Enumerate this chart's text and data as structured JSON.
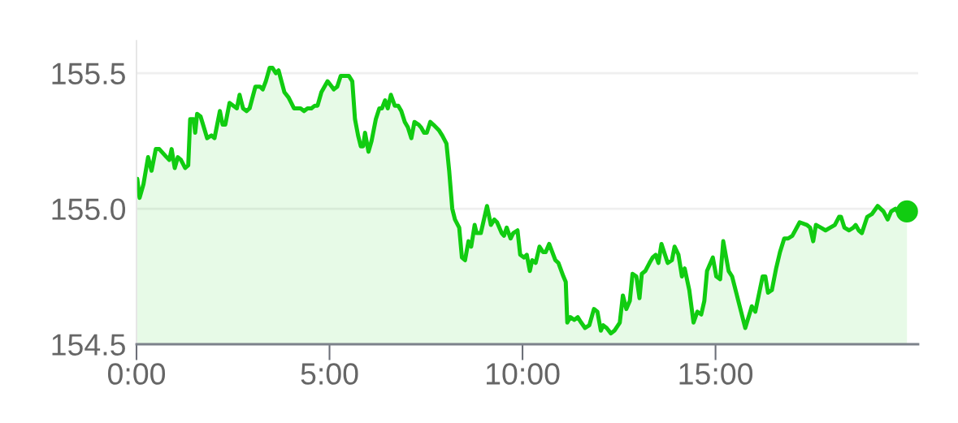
{
  "chart_data": {
    "type": "area",
    "grid": "y",
    "xlim": [
      0,
      20.25
    ],
    "ylim": [
      154.5,
      155.62
    ],
    "xticks": [
      {
        "value": 0,
        "label": "0:00"
      },
      {
        "value": 5,
        "label": "5:00"
      },
      {
        "value": 10,
        "label": "10:00"
      },
      {
        "value": 15,
        "label": "15:00"
      }
    ],
    "yticks": [
      154.5,
      {
        "value": 155,
        "label": "155.0"
      },
      155.5
    ],
    "x": [
      0.02,
      0.08,
      0.18,
      0.3,
      0.39,
      0.5,
      0.59,
      0.78,
      0.85,
      0.91,
      0.99,
      1.07,
      1.15,
      1.26,
      1.34,
      1.39,
      1.48,
      1.52,
      1.57,
      1.66,
      1.83,
      1.94,
      2.02,
      2.16,
      2.23,
      2.3,
      2.41,
      2.6,
      2.67,
      2.76,
      2.85,
      2.93,
      3.08,
      3.2,
      3.27,
      3.35,
      3.45,
      3.52,
      3.61,
      3.68,
      3.83,
      3.94,
      4.08,
      4.25,
      4.34,
      4.43,
      4.53,
      4.62,
      4.69,
      4.79,
      4.95,
      5.06,
      5.11,
      5.2,
      5.29,
      5.5,
      5.59,
      5.66,
      5.74,
      5.81,
      5.87,
      5.92,
      6.01,
      6.09,
      6.2,
      6.29,
      6.36,
      6.44,
      6.51,
      6.59,
      6.69,
      6.78,
      6.86,
      6.95,
      7.03,
      7.12,
      7.2,
      7.31,
      7.37,
      7.45,
      7.52,
      7.61,
      7.69,
      7.83,
      7.92,
      8.03,
      8.1,
      8.18,
      8.25,
      8.36,
      8.43,
      8.51,
      8.6,
      8.67,
      8.76,
      8.81,
      8.92,
      9.08,
      9.18,
      9.27,
      9.34,
      9.46,
      9.52,
      9.59,
      9.69,
      9.76,
      9.87,
      9.94,
      10.04,
      10.11,
      10.19,
      10.25,
      10.34,
      10.44,
      10.53,
      10.6,
      10.69,
      10.85,
      10.93,
      11.06,
      11.12,
      11.16,
      11.24,
      11.34,
      11.43,
      11.52,
      11.62,
      11.73,
      11.85,
      11.94,
      12.03,
      12.09,
      12.18,
      12.29,
      12.38,
      12.52,
      12.6,
      12.69,
      12.78,
      12.85,
      12.95,
      13.03,
      13.09,
      13.18,
      13.29,
      13.37,
      13.45,
      13.52,
      13.6,
      13.76,
      13.87,
      13.94,
      14.04,
      14.13,
      14.2,
      14.32,
      14.43,
      14.53,
      14.63,
      14.71,
      14.78,
      14.93,
      15.02,
      15.12,
      15.2,
      15.34,
      15.43,
      15.77,
      15.94,
      16.03,
      16.22,
      16.29,
      16.36,
      16.46,
      16.57,
      16.67,
      16.78,
      16.88,
      16.99,
      17.18,
      17.37,
      17.45,
      17.53,
      17.6,
      17.73,
      17.85,
      17.97,
      18.09,
      18.2,
      18.25,
      18.34,
      18.46,
      18.57,
      18.63,
      18.71,
      18.79,
      18.93,
      19.05,
      19.2,
      19.35,
      19.46,
      19.55,
      19.66,
      19.76,
      19.96
    ],
    "series": [
      {
        "color": "#11cc11",
        "values": [
          155.11,
          155.04,
          155.09,
          155.19,
          155.14,
          155.22,
          155.22,
          155.19,
          155.18,
          155.22,
          155.15,
          155.19,
          155.18,
          155.15,
          155.16,
          155.33,
          155.33,
          155.28,
          155.35,
          155.34,
          155.26,
          155.27,
          155.26,
          155.36,
          155.31,
          155.31,
          155.39,
          155.37,
          155.42,
          155.37,
          155.36,
          155.37,
          155.45,
          155.45,
          155.44,
          155.47,
          155.52,
          155.52,
          155.5,
          155.51,
          155.43,
          155.41,
          155.37,
          155.37,
          155.36,
          155.37,
          155.37,
          155.38,
          155.38,
          155.43,
          155.47,
          155.45,
          155.44,
          155.45,
          155.49,
          155.49,
          155.47,
          155.33,
          155.27,
          155.23,
          155.23,
          155.28,
          155.21,
          155.25,
          155.33,
          155.37,
          155.37,
          155.4,
          155.37,
          155.42,
          155.38,
          155.38,
          155.36,
          155.32,
          155.3,
          155.26,
          155.32,
          155.31,
          155.3,
          155.28,
          155.28,
          155.32,
          155.31,
          155.29,
          155.27,
          155.24,
          155.14,
          155.0,
          154.96,
          154.93,
          154.82,
          154.81,
          154.88,
          154.86,
          154.94,
          154.91,
          154.91,
          155.01,
          154.94,
          154.96,
          154.95,
          154.91,
          154.9,
          154.93,
          154.89,
          154.91,
          154.92,
          154.83,
          154.82,
          154.83,
          154.77,
          154.81,
          154.8,
          154.86,
          154.84,
          154.84,
          154.87,
          154.81,
          154.8,
          154.75,
          154.73,
          154.58,
          154.6,
          154.59,
          154.6,
          154.58,
          154.56,
          154.57,
          154.63,
          154.62,
          154.55,
          154.57,
          154.56,
          154.54,
          154.55,
          154.58,
          154.68,
          154.63,
          154.66,
          154.76,
          154.75,
          154.67,
          154.76,
          154.77,
          154.8,
          154.82,
          154.83,
          154.8,
          154.87,
          154.8,
          154.81,
          154.86,
          154.83,
          154.75,
          154.78,
          154.7,
          154.58,
          154.62,
          154.61,
          154.66,
          154.77,
          154.82,
          154.75,
          154.74,
          154.88,
          154.77,
          154.75,
          154.56,
          154.64,
          154.62,
          154.75,
          154.75,
          154.69,
          154.7,
          154.78,
          154.84,
          154.89,
          154.89,
          154.9,
          154.95,
          154.94,
          154.93,
          154.88,
          154.94,
          154.93,
          154.92,
          154.93,
          154.94,
          154.97,
          154.97,
          154.93,
          154.92,
          154.93,
          154.94,
          154.92,
          154.91,
          154.97,
          154.98,
          155.01,
          154.99,
          154.96,
          154.99,
          155.0,
          154.98,
          154.99
        ]
      },
      {
        "type": "scatter",
        "color": "#11cc11",
        "marker": "circle",
        "x": [
          19.96
        ],
        "values": [
          154.99
        ]
      }
    ]
  }
}
